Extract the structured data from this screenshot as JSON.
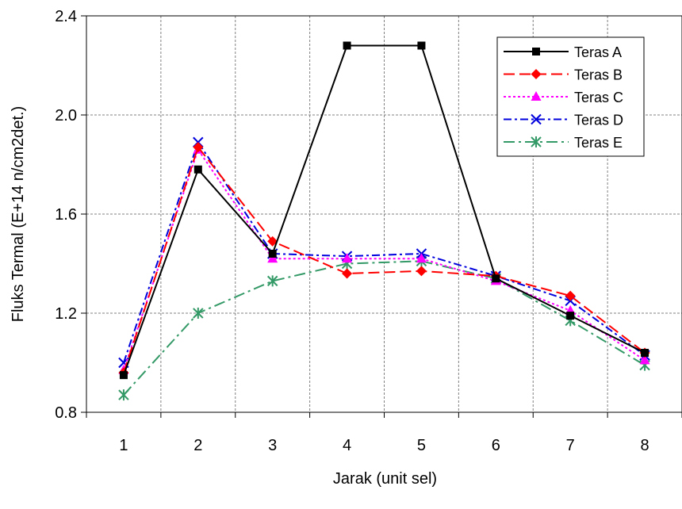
{
  "chart_data": {
    "type": "line",
    "title": "",
    "xlabel": "Jarak (unit sel)",
    "ylabel": "Fluks Termal (E+14 n/cm2det.)",
    "categories": [
      "1",
      "2",
      "3",
      "4",
      "5",
      "6",
      "7",
      "8"
    ],
    "ylim": [
      0.8,
      2.4
    ],
    "yticks": [
      "0.8",
      "1.2",
      "1.6",
      "2.0",
      "2.4"
    ],
    "grid": true,
    "legend_position": "top-right",
    "series": [
      {
        "name": "Teras A",
        "values": [
          0.95,
          1.78,
          1.44,
          2.28,
          2.28,
          1.34,
          1.19,
          1.04
        ],
        "color": "#000000",
        "dash": "solid",
        "marker": "square"
      },
      {
        "name": "Teras B",
        "values": [
          0.96,
          1.87,
          1.49,
          1.36,
          1.37,
          1.35,
          1.27,
          1.04
        ],
        "color": "#ff0000",
        "dash": "long-dash",
        "marker": "diamond"
      },
      {
        "name": "Teras C",
        "values": [
          0.97,
          1.86,
          1.42,
          1.42,
          1.42,
          1.33,
          1.21,
          1.01
        ],
        "color": "#ff00ff",
        "dash": "dot",
        "marker": "triangle"
      },
      {
        "name": "Teras D",
        "values": [
          1.0,
          1.89,
          1.44,
          1.43,
          1.44,
          1.35,
          1.25,
          1.03
        ],
        "color": "#0000dd",
        "dash": "dash-dot",
        "marker": "x"
      },
      {
        "name": "Teras E",
        "values": [
          0.87,
          1.2,
          1.33,
          1.4,
          1.41,
          1.34,
          1.17,
          0.99
        ],
        "color": "#339966",
        "dash": "long-dash-dot",
        "marker": "asterisk"
      }
    ]
  }
}
